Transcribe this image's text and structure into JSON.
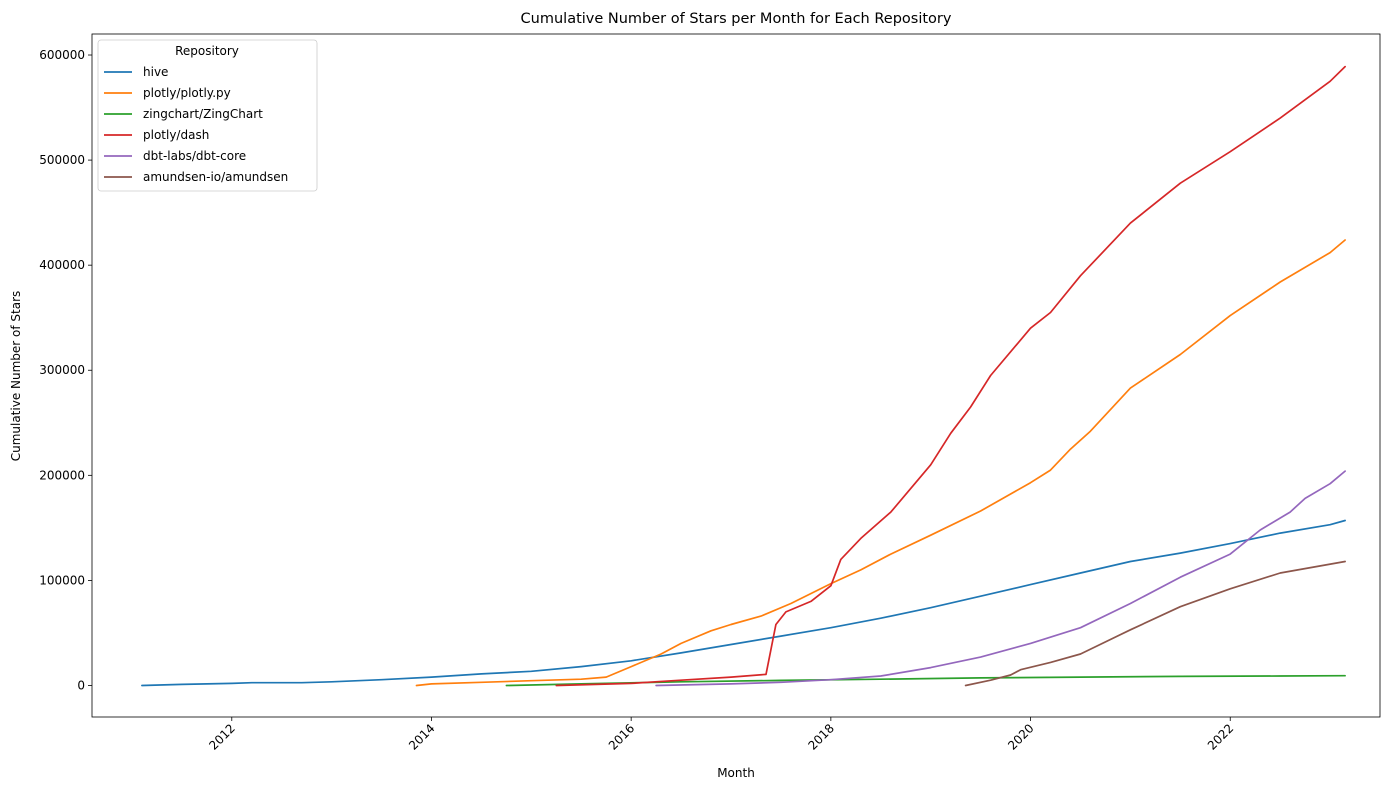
{
  "chart_data": {
    "type": "line",
    "title": "Cumulative Number of Stars per Month for Each Repository",
    "xlabel": "Month",
    "ylabel": "Cumulative Number of Stars",
    "xlim": [
      2010.6,
      2023.5
    ],
    "ylim": [
      -30000,
      620000
    ],
    "x_ticks": [
      2012,
      2014,
      2016,
      2018,
      2020,
      2022
    ],
    "x_tick_labels": [
      "2012",
      "2014",
      "2016",
      "2018",
      "2020",
      "2022"
    ],
    "y_ticks": [
      0,
      100000,
      200000,
      300000,
      400000,
      500000,
      600000
    ],
    "y_tick_labels": [
      "0",
      "100000",
      "200000",
      "300000",
      "400000",
      "500000",
      "600000"
    ],
    "grid": false,
    "legend": {
      "title": "Repository",
      "placement": "top-left"
    },
    "series": [
      {
        "name": "hive",
        "color": "#1f77b4",
        "points": [
          [
            2011.1,
            0
          ],
          [
            2011.5,
            1000
          ],
          [
            2012.0,
            2000
          ],
          [
            2012.2,
            2600
          ],
          [
            2012.7,
            2600
          ],
          [
            2013.0,
            3500
          ],
          [
            2013.5,
            5500
          ],
          [
            2014.0,
            8000
          ],
          [
            2014.5,
            11000
          ],
          [
            2015.0,
            13500
          ],
          [
            2015.5,
            18000
          ],
          [
            2016.0,
            23500
          ],
          [
            2016.5,
            31000
          ],
          [
            2017.0,
            39000
          ],
          [
            2017.5,
            47000
          ],
          [
            2018.0,
            55000
          ],
          [
            2018.5,
            64000
          ],
          [
            2019.0,
            74000
          ],
          [
            2019.5,
            85000
          ],
          [
            2020.0,
            96000
          ],
          [
            2020.5,
            107000
          ],
          [
            2021.0,
            118000
          ],
          [
            2021.5,
            126000
          ],
          [
            2022.0,
            135000
          ],
          [
            2022.5,
            145000
          ],
          [
            2023.0,
            153000
          ],
          [
            2023.15,
            157000
          ]
        ]
      },
      {
        "name": "plotly/plotly.py",
        "color": "#ff7f0e",
        "points": [
          [
            2013.85,
            0
          ],
          [
            2014.0,
            1500
          ],
          [
            2014.5,
            3000
          ],
          [
            2015.0,
            4500
          ],
          [
            2015.5,
            6000
          ],
          [
            2015.75,
            8000
          ],
          [
            2016.0,
            18000
          ],
          [
            2016.3,
            30000
          ],
          [
            2016.5,
            40000
          ],
          [
            2016.8,
            52000
          ],
          [
            2017.0,
            58000
          ],
          [
            2017.3,
            66000
          ],
          [
            2017.6,
            78000
          ],
          [
            2018.0,
            97000
          ],
          [
            2018.3,
            110000
          ],
          [
            2018.6,
            125000
          ],
          [
            2019.0,
            143000
          ],
          [
            2019.5,
            166000
          ],
          [
            2020.0,
            193000
          ],
          [
            2020.2,
            205000
          ],
          [
            2020.4,
            225000
          ],
          [
            2020.6,
            242000
          ],
          [
            2021.0,
            283000
          ],
          [
            2021.5,
            315000
          ],
          [
            2022.0,
            352000
          ],
          [
            2022.5,
            384000
          ],
          [
            2023.0,
            412000
          ],
          [
            2023.15,
            424000
          ]
        ]
      },
      {
        "name": "zingchart/ZingChart",
        "color": "#2ca02c",
        "points": [
          [
            2014.75,
            0
          ],
          [
            2015.5,
            1500
          ],
          [
            2016.5,
            3500
          ],
          [
            2017.5,
            4800
          ],
          [
            2018.5,
            6000
          ],
          [
            2019.5,
            7200
          ],
          [
            2020.5,
            8000
          ],
          [
            2021.5,
            8600
          ],
          [
            2022.5,
            9000
          ],
          [
            2023.15,
            9300
          ]
        ]
      },
      {
        "name": "plotly/dash",
        "color": "#d62728",
        "points": [
          [
            2015.25,
            0
          ],
          [
            2016.0,
            2000
          ],
          [
            2016.5,
            5000
          ],
          [
            2017.0,
            8000
          ],
          [
            2017.35,
            10500
          ],
          [
            2017.45,
            58000
          ],
          [
            2017.55,
            70000
          ],
          [
            2017.8,
            80000
          ],
          [
            2018.0,
            95000
          ],
          [
            2018.1,
            120000
          ],
          [
            2018.3,
            140000
          ],
          [
            2018.6,
            165000
          ],
          [
            2019.0,
            210000
          ],
          [
            2019.2,
            240000
          ],
          [
            2019.4,
            265000
          ],
          [
            2019.6,
            295000
          ],
          [
            2020.0,
            340000
          ],
          [
            2020.2,
            355000
          ],
          [
            2020.5,
            390000
          ],
          [
            2021.0,
            440000
          ],
          [
            2021.5,
            478000
          ],
          [
            2022.0,
            508000
          ],
          [
            2022.5,
            540000
          ],
          [
            2023.0,
            575000
          ],
          [
            2023.15,
            589000
          ]
        ]
      },
      {
        "name": "dbt-labs/dbt-core",
        "color": "#9467bd",
        "points": [
          [
            2016.25,
            0
          ],
          [
            2017.0,
            1500
          ],
          [
            2017.5,
            3000
          ],
          [
            2018.0,
            5500
          ],
          [
            2018.5,
            9000
          ],
          [
            2019.0,
            17000
          ],
          [
            2019.5,
            27000
          ],
          [
            2020.0,
            40000
          ],
          [
            2020.5,
            55000
          ],
          [
            2021.0,
            78000
          ],
          [
            2021.5,
            103000
          ],
          [
            2022.0,
            125000
          ],
          [
            2022.3,
            148000
          ],
          [
            2022.6,
            165000
          ],
          [
            2022.75,
            178000
          ],
          [
            2023.0,
            192000
          ],
          [
            2023.15,
            204000
          ]
        ]
      },
      {
        "name": "amundsen-io/amundsen",
        "color": "#8c564b",
        "points": [
          [
            2019.35,
            0
          ],
          [
            2019.6,
            5000
          ],
          [
            2019.8,
            10000
          ],
          [
            2019.9,
            15000
          ],
          [
            2020.2,
            22000
          ],
          [
            2020.5,
            30000
          ],
          [
            2021.0,
            53000
          ],
          [
            2021.5,
            75000
          ],
          [
            2022.0,
            92000
          ],
          [
            2022.5,
            107000
          ],
          [
            2023.15,
            118000
          ]
        ]
      }
    ]
  }
}
